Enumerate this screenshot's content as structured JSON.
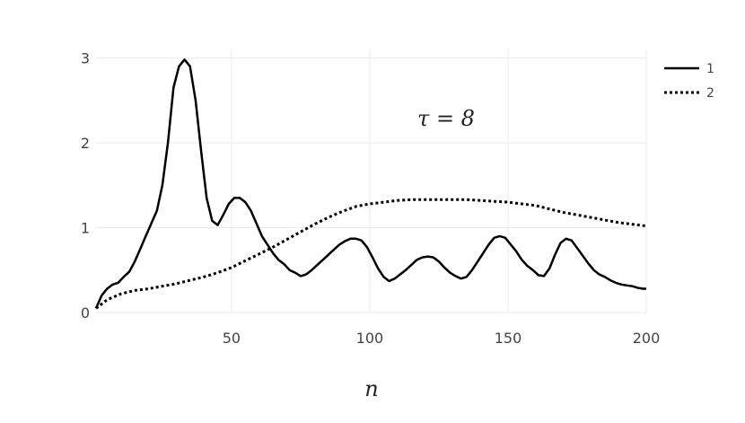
{
  "chart_data": {
    "type": "line",
    "title": "",
    "xlabel": "n",
    "ylabel": "",
    "annotation": "τ = 8",
    "xlim": [
      1,
      200
    ],
    "ylim": [
      0,
      3.1
    ],
    "xticks": [
      50,
      100,
      150,
      200
    ],
    "yticks": [
      0,
      1,
      2,
      3
    ],
    "grid": true,
    "legend_position": "top-right",
    "series": [
      {
        "name": "1",
        "style": "solid",
        "color": "#000000",
        "x": [
          1,
          3,
          5,
          7,
          9,
          11,
          13,
          15,
          17,
          19,
          21,
          23,
          25,
          27,
          29,
          31,
          33,
          35,
          37,
          39,
          41,
          43,
          45,
          47,
          49,
          51,
          53,
          55,
          57,
          59,
          61,
          63,
          65,
          67,
          69,
          71,
          73,
          75,
          77,
          79,
          81,
          83,
          85,
          87,
          89,
          91,
          93,
          95,
          97,
          99,
          101,
          103,
          105,
          107,
          109,
          111,
          113,
          115,
          117,
          119,
          121,
          123,
          125,
          127,
          129,
          131,
          133,
          135,
          137,
          139,
          141,
          143,
          145,
          147,
          149,
          151,
          153,
          155,
          157,
          159,
          161,
          163,
          165,
          167,
          169,
          171,
          173,
          175,
          177,
          179,
          181,
          183,
          185,
          187,
          189,
          191,
          193,
          195,
          197,
          199,
          200
        ],
        "y": [
          0.05,
          0.2,
          0.28,
          0.33,
          0.35,
          0.42,
          0.48,
          0.6,
          0.75,
          0.9,
          1.05,
          1.2,
          1.5,
          2.0,
          2.65,
          2.9,
          2.98,
          2.9,
          2.5,
          1.9,
          1.35,
          1.08,
          1.03,
          1.15,
          1.28,
          1.35,
          1.35,
          1.3,
          1.2,
          1.05,
          0.9,
          0.8,
          0.7,
          0.62,
          0.57,
          0.5,
          0.47,
          0.43,
          0.45,
          0.5,
          0.56,
          0.62,
          0.68,
          0.74,
          0.8,
          0.84,
          0.87,
          0.87,
          0.85,
          0.77,
          0.65,
          0.52,
          0.42,
          0.37,
          0.4,
          0.45,
          0.5,
          0.56,
          0.62,
          0.65,
          0.66,
          0.65,
          0.6,
          0.53,
          0.47,
          0.43,
          0.4,
          0.42,
          0.5,
          0.6,
          0.7,
          0.8,
          0.88,
          0.9,
          0.88,
          0.8,
          0.72,
          0.62,
          0.55,
          0.5,
          0.44,
          0.43,
          0.52,
          0.68,
          0.82,
          0.87,
          0.85,
          0.76,
          0.67,
          0.58,
          0.5,
          0.45,
          0.42,
          0.38,
          0.35,
          0.33,
          0.32,
          0.31,
          0.29,
          0.28,
          0.28
        ]
      },
      {
        "name": "2",
        "style": "dotted",
        "color": "#000000",
        "x": [
          1,
          5,
          10,
          15,
          20,
          25,
          30,
          35,
          40,
          45,
          50,
          55,
          60,
          65,
          70,
          75,
          80,
          85,
          90,
          95,
          100,
          105,
          110,
          115,
          120,
          125,
          130,
          135,
          140,
          145,
          150,
          155,
          160,
          165,
          170,
          175,
          180,
          185,
          190,
          195,
          200
        ],
        "y": [
          0.05,
          0.15,
          0.22,
          0.26,
          0.28,
          0.31,
          0.34,
          0.38,
          0.42,
          0.47,
          0.53,
          0.61,
          0.69,
          0.77,
          0.86,
          0.95,
          1.04,
          1.12,
          1.19,
          1.25,
          1.28,
          1.3,
          1.32,
          1.33,
          1.33,
          1.33,
          1.33,
          1.33,
          1.32,
          1.31,
          1.3,
          1.28,
          1.26,
          1.22,
          1.18,
          1.15,
          1.12,
          1.09,
          1.06,
          1.04,
          1.02
        ]
      }
    ]
  }
}
